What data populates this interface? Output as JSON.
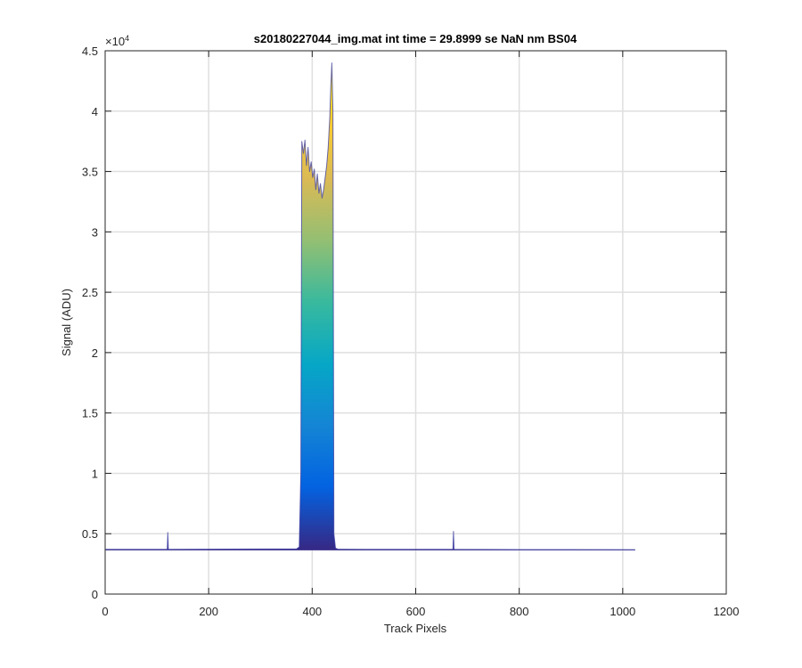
{
  "chart_data": {
    "type": "area",
    "title": "s20180227044_img.mat int time = 29.8999 se  NaN nm BS04",
    "xlabel": "Track Pixels",
    "ylabel": "Signal (ADU)",
    "xlim": [
      0,
      1200
    ],
    "ylim": [
      0,
      45000
    ],
    "exponent_label": "×10",
    "exponent_power": "4",
    "x_ticks": [
      0,
      200,
      400,
      600,
      800,
      1000,
      1200
    ],
    "x_tick_labels": [
      "0",
      "200",
      "400",
      "600",
      "800",
      "1000",
      "1200"
    ],
    "y_ticks": [
      0,
      5000,
      10000,
      15000,
      20000,
      25000,
      30000,
      35000,
      40000,
      45000
    ],
    "y_tick_labels": [
      "0",
      "0.5",
      "1",
      "1.5",
      "2",
      "2.5",
      "3",
      "3.5",
      "4",
      "4.5"
    ],
    "grid": true,
    "colormap": "parula",
    "colormap_stops": [
      "#352a87",
      "#0363e1",
      "#1485d4",
      "#06a7c6",
      "#38b99e",
      "#92bf73",
      "#d9ba56",
      "#fcce2e",
      "#f9fb0e"
    ],
    "series": [
      {
        "x": [
          1,
          120,
          121,
          122,
          370,
          375,
          378,
          380,
          383,
          386,
          389,
          392,
          395,
          398,
          401,
          404,
          407,
          410,
          413,
          416,
          419,
          422,
          425,
          428,
          431,
          434,
          436,
          438,
          440,
          442,
          445,
          450,
          500,
          672,
          673,
          674,
          800,
          1024
        ],
        "y": [
          3700,
          3700,
          5100,
          3700,
          3750,
          3900,
          10000,
          37500,
          36500,
          37600,
          35500,
          37000,
          35000,
          35800,
          34500,
          35200,
          33500,
          34800,
          33200,
          34000,
          32800,
          33500,
          34500,
          35500,
          37000,
          39500,
          42000,
          44000,
          40000,
          5000,
          3800,
          3720,
          3700,
          3700,
          5200,
          3700,
          3690,
          3680
        ]
      }
    ]
  }
}
